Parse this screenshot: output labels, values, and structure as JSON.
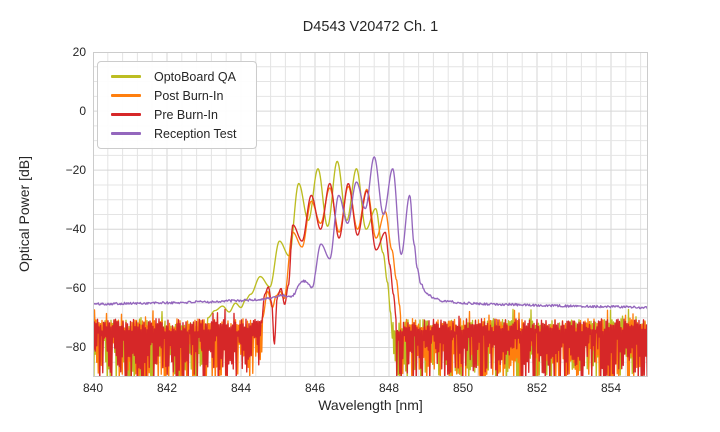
{
  "title": "D4543 V20472 Ch. 1",
  "axes": {
    "xlabel": "Wavelength [nm]",
    "ylabel": "Optical Power [dB]"
  },
  "chart_data": {
    "type": "line",
    "title": "D4543 V20472 Ch. 1",
    "xlabel": "Wavelength [nm]",
    "ylabel": "Optical Power [dB]",
    "xlim": [
      840,
      855
    ],
    "ylim": [
      -90,
      20
    ],
    "x_ticks": [
      840,
      842,
      844,
      846,
      848,
      850,
      852,
      854
    ],
    "y_ticks": [
      20,
      0,
      -20,
      -40,
      -60,
      -80
    ],
    "grid": {
      "on": true,
      "minor_x_step_nm": 0.4,
      "minor_y_step_db": 5,
      "major_color": "#d6d6d6",
      "minor_color": "#e4e4e4",
      "spine_color": "#cccccc"
    },
    "legend_position": "upper left",
    "mode_spacing_nm": 0.5,
    "series": [
      {
        "name": "OptoBoard QA",
        "color": "#bcbd22",
        "style": "multimode spectrum with spiky instrument noise floor",
        "signal_range_nm": [
          843.1,
          848.08
        ],
        "noise_floor": {
          "top_db": -71,
          "spikes_to_db": -93,
          "clipped_at_db": -90
        },
        "points": [
          [
            843.1,
            -70
          ],
          [
            843.3,
            -67.5
          ],
          [
            843.5,
            -66
          ],
          [
            843.68,
            -68
          ],
          [
            843.85,
            -65
          ],
          [
            844.0,
            -66.5
          ],
          [
            844.12,
            -64
          ],
          [
            844.26,
            -62
          ],
          [
            844.52,
            -56
          ],
          [
            844.78,
            -59.5
          ],
          [
            845.04,
            -44
          ],
          [
            845.3,
            -49
          ],
          [
            845.56,
            -24.5
          ],
          [
            845.82,
            -37
          ],
          [
            846.08,
            -19.5
          ],
          [
            846.34,
            -39
          ],
          [
            846.6,
            -17
          ],
          [
            846.86,
            -37
          ],
          [
            847.12,
            -19.5
          ],
          [
            847.38,
            -40
          ],
          [
            847.64,
            -33
          ],
          [
            847.84,
            -48
          ],
          [
            847.96,
            -58
          ],
          [
            848.04,
            -68
          ],
          [
            848.08,
            -74
          ]
        ]
      },
      {
        "name": "Post Burn-In",
        "color": "#ff7f0e",
        "style": "multimode spectrum with spiky instrument noise floor",
        "signal_range_nm": [
          844.58,
          848.33
        ],
        "noise_floor": {
          "top_db": -71.5,
          "spikes_to_db": -93,
          "clipped_at_db": -90
        },
        "points": [
          [
            844.58,
            -70
          ],
          [
            844.72,
            -61
          ],
          [
            844.85,
            -66.5
          ],
          [
            844.95,
            -62.5
          ],
          [
            845.06,
            -61
          ],
          [
            845.16,
            -63.5
          ],
          [
            845.4,
            -41
          ],
          [
            845.65,
            -46
          ],
          [
            845.9,
            -30.5
          ],
          [
            846.15,
            -38
          ],
          [
            846.4,
            -26
          ],
          [
            846.65,
            -41
          ],
          [
            846.9,
            -25.5
          ],
          [
            847.15,
            -40
          ],
          [
            847.4,
            -26.5
          ],
          [
            847.65,
            -43
          ],
          [
            847.9,
            -34
          ],
          [
            848.08,
            -47
          ],
          [
            848.2,
            -57
          ],
          [
            848.29,
            -66
          ],
          [
            848.33,
            -72
          ]
        ]
      },
      {
        "name": "Pre Burn-In",
        "color": "#d62728",
        "style": "multimode spectrum with spiky instrument noise floor",
        "signal_range_nm": [
          844.55,
          848.2
        ],
        "noise_floor": {
          "top_db": -70.5,
          "spikes_to_db": -93,
          "clipped_at_db": -90
        },
        "points": [
          [
            844.55,
            -72
          ],
          [
            844.64,
            -62
          ],
          [
            844.74,
            -59.5
          ],
          [
            844.83,
            -65
          ],
          [
            844.9,
            -79
          ],
          [
            844.98,
            -63
          ],
          [
            845.08,
            -60
          ],
          [
            845.18,
            -65.5
          ],
          [
            845.28,
            -59
          ],
          [
            845.4,
            -38.5
          ],
          [
            845.65,
            -44
          ],
          [
            845.9,
            -28.5
          ],
          [
            846.15,
            -40
          ],
          [
            846.4,
            -24.5
          ],
          [
            846.65,
            -43
          ],
          [
            846.9,
            -24.5
          ],
          [
            847.15,
            -42
          ],
          [
            847.4,
            -27
          ],
          [
            847.65,
            -47
          ],
          [
            847.9,
            -41
          ],
          [
            848.02,
            -52
          ],
          [
            848.12,
            -62
          ],
          [
            848.2,
            -71
          ]
        ]
      },
      {
        "name": "Reception Test",
        "color": "#9467bd",
        "style": "multimode spectrum on smooth elevated baseline (no spiky floor)",
        "signal_range_nm": [
          840,
          855
        ],
        "baseline_db": -65,
        "points": [
          [
            840.0,
            -65.3
          ],
          [
            841.0,
            -65.1
          ],
          [
            842.0,
            -64.9
          ],
          [
            843.0,
            -64.6
          ],
          [
            843.8,
            -64.2
          ],
          [
            844.4,
            -63.9
          ],
          [
            844.8,
            -63.3
          ],
          [
            845.1,
            -62.3
          ],
          [
            845.35,
            -62.8
          ],
          [
            845.68,
            -57.5
          ],
          [
            845.92,
            -59.5
          ],
          [
            846.16,
            -45
          ],
          [
            846.4,
            -50
          ],
          [
            846.64,
            -28.5
          ],
          [
            846.88,
            -38
          ],
          [
            847.12,
            -24
          ],
          [
            847.36,
            -33
          ],
          [
            847.6,
            -15.5
          ],
          [
            847.85,
            -35
          ],
          [
            848.1,
            -19.5
          ],
          [
            848.33,
            -48.5
          ],
          [
            848.56,
            -28.5
          ],
          [
            848.68,
            -45
          ],
          [
            848.76,
            -53
          ],
          [
            848.86,
            -58.5
          ],
          [
            849.0,
            -61.5
          ],
          [
            849.2,
            -63.2
          ],
          [
            849.5,
            -64.3
          ],
          [
            850.0,
            -65.0
          ],
          [
            851.0,
            -65.4
          ],
          [
            852.0,
            -65.7
          ],
          [
            853.0,
            -66.0
          ],
          [
            854.0,
            -66.2
          ],
          [
            855.0,
            -66.5
          ]
        ]
      }
    ]
  }
}
